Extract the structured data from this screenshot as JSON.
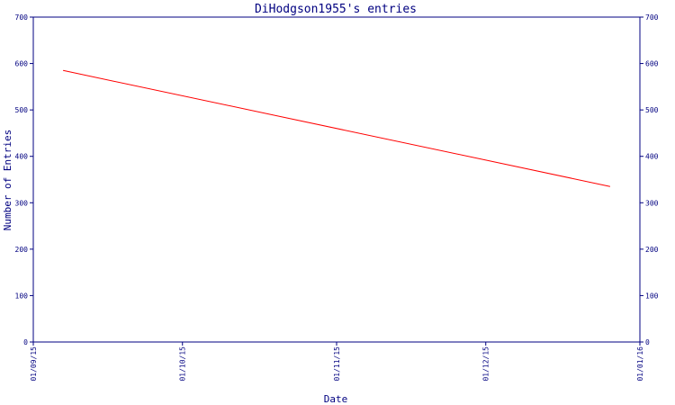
{
  "colors": {
    "axis": "#000080",
    "line": "#ff0000",
    "text": "#000080",
    "background": "#ffffff"
  },
  "chart_data": {
    "type": "line",
    "title": "DiHodgson1955's entries",
    "xlabel": "Date",
    "ylabel": "Number of Entries",
    "x_ticks": [
      "01/09/15",
      "01/10/15",
      "01/11/15",
      "01/12/15",
      "01/01/16"
    ],
    "y_ticks": [
      "0",
      "100",
      "200",
      "300",
      "400",
      "500",
      "600",
      "700"
    ],
    "ylim": [
      0,
      700
    ],
    "xlim": [
      "01/09/15",
      "01/01/16"
    ],
    "grid": false,
    "series": [
      {
        "x": [
          "2015-09-07",
          "2015-12-26"
        ],
        "values": [
          585,
          335
        ]
      }
    ]
  }
}
